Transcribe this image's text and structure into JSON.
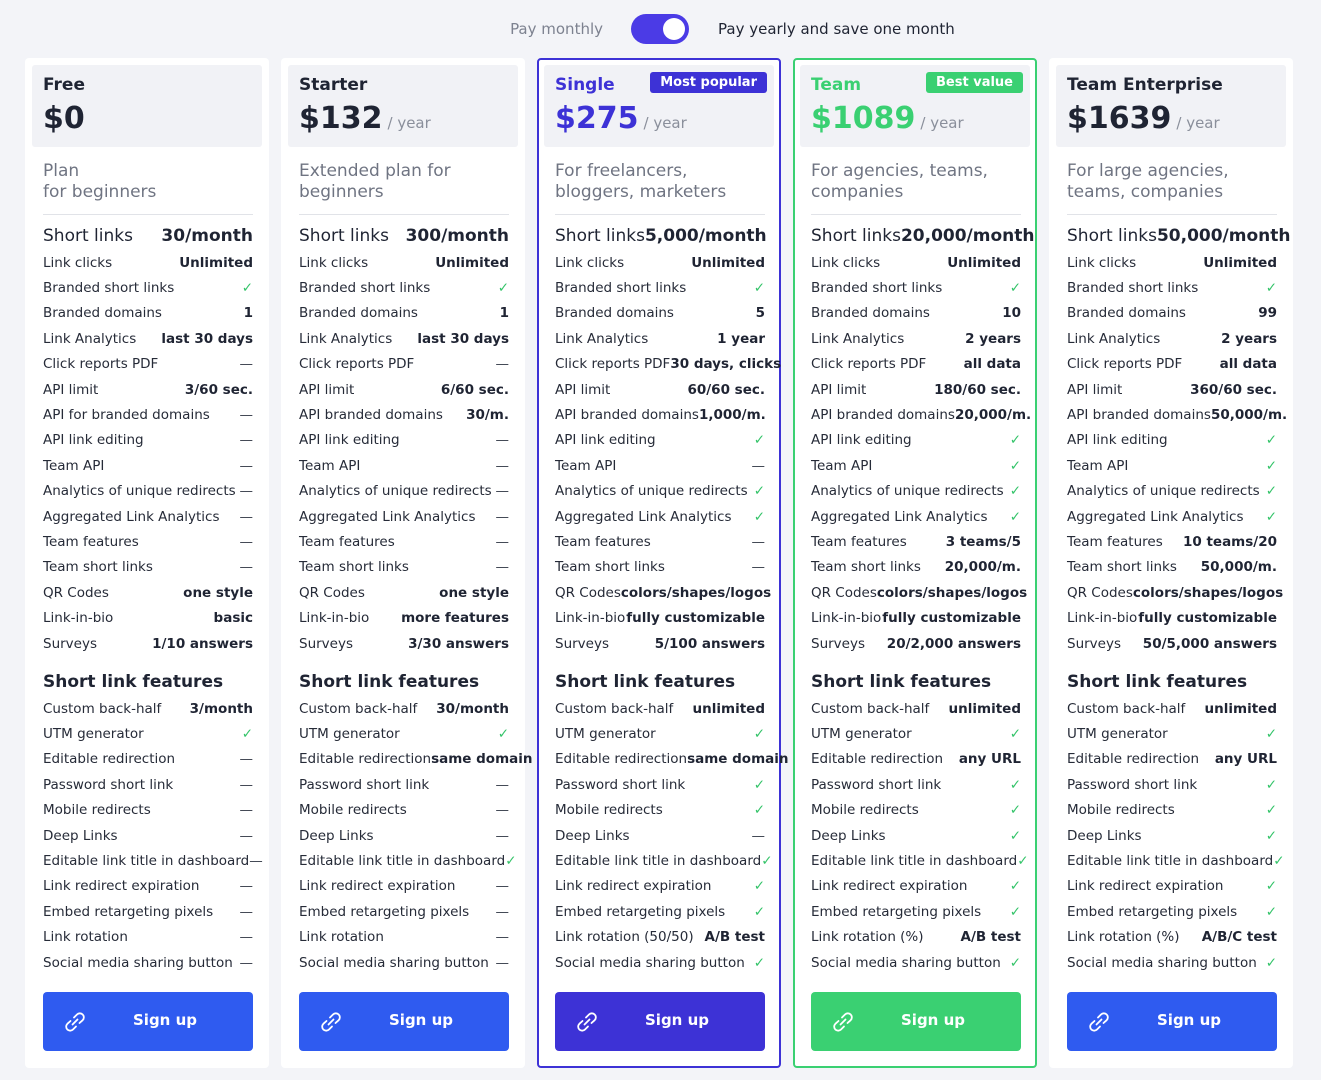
{
  "billing_toggle": {
    "left_label": "Pay monthly",
    "right_label": "Pay yearly and save one month",
    "yearly_selected": true
  },
  "colors": {
    "accent_blue": "#2f5bf0",
    "accent_purple": "#3d32d6",
    "accent_green": "#3ad072",
    "check_green": "#35c46a",
    "toggle_purple": "#4b3be6"
  },
  "plans": [
    {
      "name": "Free",
      "badge": "",
      "price": "$0",
      "period": "",
      "desc": [
        "Plan",
        "for beginners"
      ],
      "theme": "default",
      "sec1_title": [
        "Short links",
        "30/month"
      ],
      "features1": [
        [
          "Link clicks",
          "Unlimited"
        ],
        [
          "Branded short links",
          "✓"
        ],
        [
          "Branded domains",
          "1"
        ],
        [
          "Link Analytics",
          "last 30 days"
        ],
        [
          "Click reports PDF",
          "—"
        ],
        [
          "API limit",
          "3/60 sec."
        ],
        [
          "API for branded domains",
          "—"
        ],
        [
          "API link editing",
          "—"
        ],
        [
          "Team API",
          "—"
        ],
        [
          "Analytics of unique redirects",
          "—"
        ],
        [
          "Aggregated Link Analytics",
          "—"
        ],
        [
          "Team features",
          "—"
        ],
        [
          "Team short links",
          "—"
        ],
        [
          "QR Codes",
          "one style"
        ],
        [
          "Link-in-bio",
          "basic"
        ],
        [
          "Surveys",
          "1/10 answers"
        ]
      ],
      "sec2_title": [
        "Short link features",
        ""
      ],
      "features2": [
        [
          "Custom back-half",
          "3/month"
        ],
        [
          "UTM generator",
          "✓"
        ],
        [
          "Editable redirection",
          "—"
        ],
        [
          "Password short link",
          "—"
        ],
        [
          "Mobile redirects",
          "—"
        ],
        [
          "Deep Links",
          "—"
        ],
        [
          "Editable link title in dashboard",
          "—"
        ],
        [
          "Link redirect expiration",
          "—"
        ],
        [
          "Embed retargeting pixels",
          "—"
        ],
        [
          "Link rotation",
          "—"
        ],
        [
          "Social media sharing button",
          "—"
        ]
      ],
      "signup": "Sign up"
    },
    {
      "name": "Starter",
      "badge": "",
      "price": "$132",
      "period": "/ year",
      "desc": [
        "Extended plan for",
        "beginners"
      ],
      "theme": "default",
      "sec1_title": [
        "Short links",
        "300/month"
      ],
      "features1": [
        [
          "Link clicks",
          "Unlimited"
        ],
        [
          "Branded short links",
          "✓"
        ],
        [
          "Branded domains",
          "1"
        ],
        [
          "Link Analytics",
          "last 30 days"
        ],
        [
          "Click reports PDF",
          "—"
        ],
        [
          "API limit",
          "6/60 sec."
        ],
        [
          "API branded domains",
          "30/m."
        ],
        [
          "API link editing",
          "—"
        ],
        [
          "Team API",
          "—"
        ],
        [
          "Analytics of unique redirects",
          "—"
        ],
        [
          "Aggregated Link Analytics",
          "—"
        ],
        [
          "Team features",
          "—"
        ],
        [
          "Team short links",
          "—"
        ],
        [
          "QR Codes",
          "one style"
        ],
        [
          "Link-in-bio",
          "more features"
        ],
        [
          "Surveys",
          "3/30 answers"
        ]
      ],
      "sec2_title": [
        "Short link features",
        ""
      ],
      "features2": [
        [
          "Custom back-half",
          "30/month"
        ],
        [
          "UTM generator",
          "✓"
        ],
        [
          "Editable redirection",
          "same domain"
        ],
        [
          "Password short link",
          "—"
        ],
        [
          "Mobile redirects",
          "—"
        ],
        [
          "Deep Links",
          "—"
        ],
        [
          "Editable link title in dashboard",
          "✓"
        ],
        [
          "Link redirect expiration",
          "—"
        ],
        [
          "Embed retargeting pixels",
          "—"
        ],
        [
          "Link rotation",
          "—"
        ],
        [
          "Social media sharing button",
          "—"
        ]
      ],
      "signup": "Sign up"
    },
    {
      "name": "Single",
      "badge": "Most popular",
      "price": "$275",
      "period": "/ year",
      "desc": [
        "For freelancers,",
        "bloggers, marketers"
      ],
      "theme": "purple",
      "sec1_title": [
        "Short links",
        "5,000/month"
      ],
      "features1": [
        [
          "Link clicks",
          "Unlimited"
        ],
        [
          "Branded short links",
          "✓"
        ],
        [
          "Branded domains",
          "5"
        ],
        [
          "Link Analytics",
          "1 year"
        ],
        [
          "Click reports PDF",
          "30 days, clicks"
        ],
        [
          "API limit",
          "60/60 sec."
        ],
        [
          "API branded domains",
          "1,000/m."
        ],
        [
          "API link editing",
          "✓"
        ],
        [
          "Team API",
          "—"
        ],
        [
          "Analytics of unique redirects",
          "✓"
        ],
        [
          "Aggregated Link Analytics",
          "✓"
        ],
        [
          "Team features",
          "—"
        ],
        [
          "Team short links",
          "—"
        ],
        [
          "QR Codes",
          "colors/shapes/logos"
        ],
        [
          "Link-in-bio",
          "fully customizable"
        ],
        [
          "Surveys",
          "5/100 answers"
        ]
      ],
      "sec2_title": [
        "Short link features",
        ""
      ],
      "features2": [
        [
          "Custom back-half",
          "unlimited"
        ],
        [
          "UTM generator",
          "✓"
        ],
        [
          "Editable redirection",
          "same domain"
        ],
        [
          "Password short link",
          "✓"
        ],
        [
          "Mobile redirects",
          "✓"
        ],
        [
          "Deep Links",
          "—"
        ],
        [
          "Editable link title in dashboard",
          "✓"
        ],
        [
          "Link redirect expiration",
          "✓"
        ],
        [
          "Embed retargeting pixels",
          "✓"
        ],
        [
          "Link rotation (50/50)",
          "A/B test"
        ],
        [
          "Social media sharing button",
          "✓"
        ]
      ],
      "signup": "Sign up"
    },
    {
      "name": "Team",
      "badge": "Best value",
      "price": "$1089",
      "period": "/ year",
      "desc": [
        "For agencies, teams,",
        "companies"
      ],
      "theme": "green",
      "sec1_title": [
        "Short links",
        "20,000/month"
      ],
      "features1": [
        [
          "Link clicks",
          "Unlimited"
        ],
        [
          "Branded short links",
          "✓"
        ],
        [
          "Branded domains",
          "10"
        ],
        [
          "Link Analytics",
          "2 years"
        ],
        [
          "Click reports PDF",
          "all data"
        ],
        [
          "API limit",
          "180/60 sec."
        ],
        [
          "API branded domains",
          "20,000/m."
        ],
        [
          "API link editing",
          "✓"
        ],
        [
          "Team API",
          "✓"
        ],
        [
          "Analytics of unique redirects",
          "✓"
        ],
        [
          "Aggregated Link Analytics",
          "✓"
        ],
        [
          "Team features",
          "3 teams/5"
        ],
        [
          "Team short links",
          "20,000/m."
        ],
        [
          "QR Codes",
          "colors/shapes/logos"
        ],
        [
          "Link-in-bio",
          "fully customizable"
        ],
        [
          "Surveys",
          "20/2,000 answers"
        ]
      ],
      "sec2_title": [
        "Short link features",
        ""
      ],
      "features2": [
        [
          "Custom back-half",
          "unlimited"
        ],
        [
          "UTM generator",
          "✓"
        ],
        [
          "Editable redirection",
          "any URL"
        ],
        [
          "Password short link",
          "✓"
        ],
        [
          "Mobile redirects",
          "✓"
        ],
        [
          "Deep Links",
          "✓"
        ],
        [
          "Editable link title in dashboard",
          "✓"
        ],
        [
          "Link redirect expiration",
          "✓"
        ],
        [
          "Embed retargeting pixels",
          "✓"
        ],
        [
          "Link rotation (%)",
          "A/B test"
        ],
        [
          "Social media sharing button",
          "✓"
        ]
      ],
      "signup": "Sign up"
    },
    {
      "name": "Team Enterprise",
      "badge": "",
      "price": "$1639",
      "period": "/ year",
      "desc": [
        "For large agencies,",
        "teams, companies"
      ],
      "theme": "default",
      "sec1_title": [
        "Short links",
        "50,000/month"
      ],
      "features1": [
        [
          "Link clicks",
          "Unlimited"
        ],
        [
          "Branded short links",
          "✓"
        ],
        [
          "Branded domains",
          "99"
        ],
        [
          "Link Analytics",
          "2 years"
        ],
        [
          "Click reports PDF",
          "all data"
        ],
        [
          "API limit",
          "360/60 sec."
        ],
        [
          "API branded domains",
          "50,000/m."
        ],
        [
          "API link editing",
          "✓"
        ],
        [
          "Team API",
          "✓"
        ],
        [
          "Analytics of unique redirects",
          "✓"
        ],
        [
          "Aggregated Link Analytics",
          "✓"
        ],
        [
          "Team features",
          "10 teams/20"
        ],
        [
          "Team short links",
          "50,000/m."
        ],
        [
          "QR Codes",
          "colors/shapes/logos"
        ],
        [
          "Link-in-bio",
          "fully customizable"
        ],
        [
          "Surveys",
          "50/5,000 answers"
        ]
      ],
      "sec2_title": [
        "Short link features",
        ""
      ],
      "features2": [
        [
          "Custom back-half",
          "unlimited"
        ],
        [
          "UTM generator",
          "✓"
        ],
        [
          "Editable redirection",
          "any URL"
        ],
        [
          "Password short link",
          "✓"
        ],
        [
          "Mobile redirects",
          "✓"
        ],
        [
          "Deep Links",
          "✓"
        ],
        [
          "Editable link title in dashboard",
          "✓"
        ],
        [
          "Link redirect expiration",
          "✓"
        ],
        [
          "Embed retargeting pixels",
          "✓"
        ],
        [
          "Link rotation (%)",
          "A/B/C test"
        ],
        [
          "Social media sharing button",
          "✓"
        ]
      ],
      "signup": "Sign up"
    }
  ]
}
